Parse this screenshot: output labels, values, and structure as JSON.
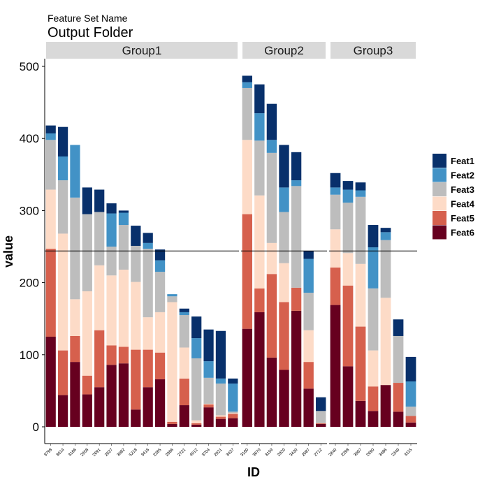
{
  "chart_data": {
    "type": "bar",
    "stacked": true,
    "faceted": true,
    "subtitle": "Feature Set Name",
    "title": "Output Folder",
    "xlabel": "ID",
    "ylabel": "value",
    "ylim": [
      0,
      510
    ],
    "yticks": [
      0,
      100,
      200,
      300,
      400,
      500
    ],
    "reference_line": 244,
    "legend_position": "right",
    "series": [
      {
        "name": "Feat1",
        "color": "#08306b"
      },
      {
        "name": "Feat2",
        "color": "#4292c6"
      },
      {
        "name": "Feat3",
        "color": "#bdbdbd"
      },
      {
        "name": "Feat4",
        "color": "#fddbc7"
      },
      {
        "name": "Feat5",
        "color": "#d6604d"
      },
      {
        "name": "Feat6",
        "color": "#67001f"
      }
    ],
    "facets": [
      {
        "label": "Group1",
        "bars": [
          {
            "id": "3798",
            "values": [
              11,
              9,
              69,
              82,
              122,
              125
            ]
          },
          {
            "id": "3614",
            "values": [
              41,
              33,
              74,
              162,
              62,
              44
            ]
          },
          {
            "id": "3166",
            "values": [
              0,
              73,
              141,
              51,
              36,
              90
            ]
          },
          {
            "id": "2958",
            "values": [
              37,
              0,
              107,
              117,
              26,
              45
            ]
          },
          {
            "id": "2691",
            "values": [
              31,
              0,
              74,
              90,
              79,
              55
            ]
          },
          {
            "id": "2827",
            "values": [
              14,
              46,
              40,
              97,
              27,
              86
            ]
          },
          {
            "id": "3082",
            "values": [
              3,
              17,
              62,
              107,
              23,
              88
            ]
          },
          {
            "id": "5218",
            "values": [
              28,
              0,
              50,
              94,
              83,
              24
            ]
          },
          {
            "id": "3416",
            "values": [
              14,
              8,
              95,
              45,
              52,
              55
            ]
          },
          {
            "id": "2285",
            "values": [
              15,
              16,
              56,
              56,
              37,
              66
            ]
          },
          {
            "id": "2986",
            "values": [
              0,
              3,
              8,
              166,
              3,
              4
            ]
          },
          {
            "id": "2721",
            "values": [
              5,
              4,
              45,
              43,
              37,
              30
            ]
          },
          {
            "id": "4012",
            "values": [
              30,
              28,
              86,
              4,
              2,
              3
            ]
          },
          {
            "id": "3704",
            "values": [
              44,
              23,
              36,
              1,
              4,
              27
            ]
          },
          {
            "id": "2921",
            "values": [
              66,
              7,
              44,
              2,
              3,
              11
            ]
          },
          {
            "id": "3437",
            "values": [
              7,
              39,
              2,
              1,
              6,
              12
            ]
          }
        ]
      },
      {
        "label": "Group2",
        "bars": [
          {
            "id": "3180",
            "values": [
              9,
              8,
              72,
              103,
              159,
              136
            ]
          },
          {
            "id": "3670",
            "values": [
              40,
              38,
              76,
              129,
              33,
              159
            ]
          },
          {
            "id": "3159",
            "values": [
              50,
              18,
              125,
              43,
              116,
              96
            ]
          },
          {
            "id": "2929",
            "values": [
              59,
              34,
              71,
              54,
              94,
              79
            ]
          },
          {
            "id": "3430",
            "values": [
              39,
              8,
              141,
              0,
              32,
              161
            ]
          },
          {
            "id": "2087",
            "values": [
              11,
              47,
              52,
              44,
              37,
              53
            ]
          },
          {
            "id": "2712",
            "values": [
              19,
              0,
              17,
              0,
              1,
              4
            ]
          }
        ]
      },
      {
        "label": "Group3",
        "bars": [
          {
            "id": "2840",
            "values": [
              20,
              10,
              48,
              53,
              52,
              169
            ]
          },
          {
            "id": "2398",
            "values": [
              12,
              18,
              70,
              45,
              112,
              84
            ]
          },
          {
            "id": "3967",
            "values": [
              11,
              9,
              93,
              87,
              103,
              36
            ]
          },
          {
            "id": "2690",
            "values": [
              31,
              57,
              86,
              50,
              34,
              22
            ]
          },
          {
            "id": "3486",
            "values": [
              6,
              11,
              80,
              121,
              0,
              58
            ]
          },
          {
            "id": "2349",
            "values": [
              23,
              0,
              65,
              0,
              40,
              21
            ]
          },
          {
            "id": "3115",
            "values": [
              34,
              35,
              13,
              0,
              9,
              6
            ]
          }
        ]
      }
    ]
  }
}
